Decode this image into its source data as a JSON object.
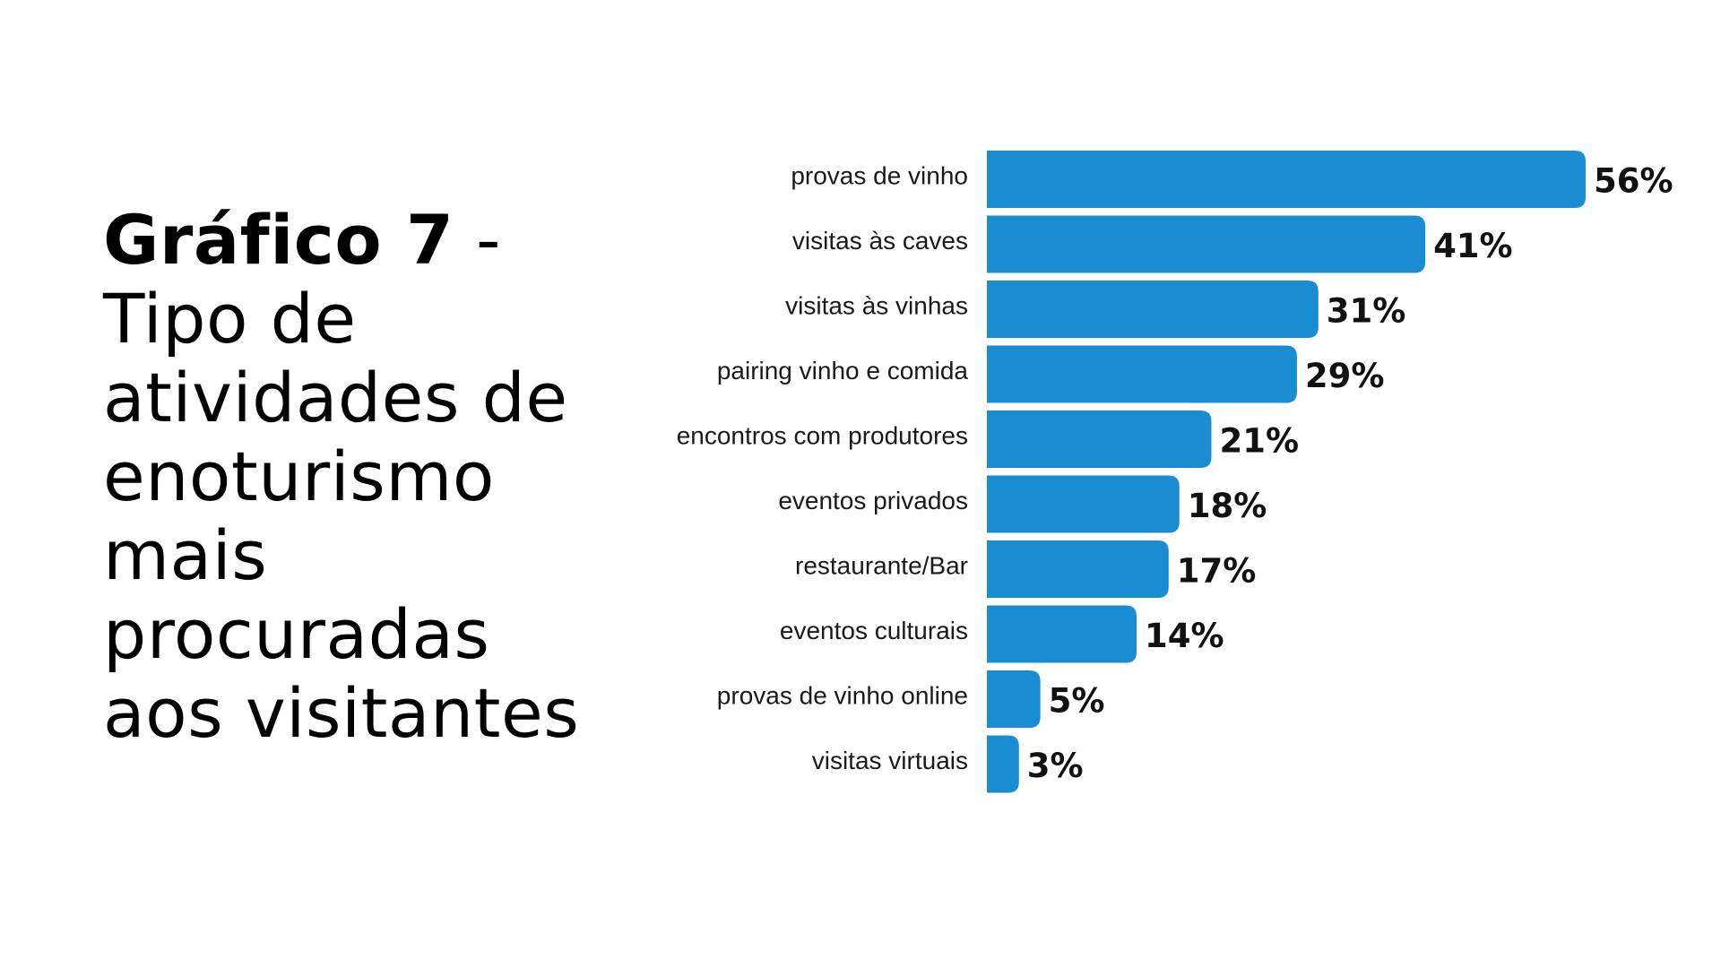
{
  "title": {
    "main": "Gráfico 7",
    "dash": " -",
    "subtitle_lines": [
      "Tipo de",
      "atividades de",
      "enoturismo",
      "mais",
      "procuradas",
      "aos visitantes"
    ]
  },
  "colors": {
    "bar": "#1a8dd2",
    "text": "#111111",
    "background": "#ffffff"
  },
  "chart_data": {
    "type": "bar",
    "orientation": "horizontal",
    "title": "Gráfico 7 - Tipo de atividades de enoturismo mais procuradas aos visitantes",
    "categories": [
      "provas de vinho",
      "visitas às caves",
      "visitas às vinhas",
      "pairing vinho e comida",
      "encontros com produtores",
      "eventos privados",
      "restaurante/Bar",
      "eventos culturais",
      "provas de vinho online",
      "visitas virtuais"
    ],
    "values": [
      56,
      41,
      31,
      29,
      21,
      18,
      17,
      14,
      5,
      3
    ],
    "value_labels": [
      "56%",
      "41%",
      "31%",
      "29%",
      "21%",
      "18%",
      "17%",
      "14%",
      "5%",
      "3%"
    ],
    "unit": "%",
    "xlim": [
      0,
      56
    ],
    "xlabel": "",
    "ylabel": "",
    "grid": false,
    "legend": false
  }
}
